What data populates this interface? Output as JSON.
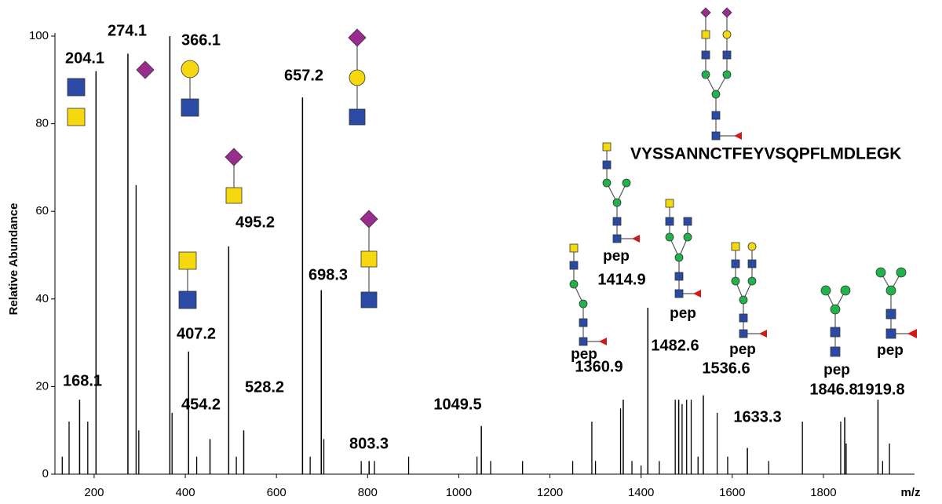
{
  "chart_data": {
    "type": "stem",
    "y_label": "Relative Abundance",
    "x_label": "m/z",
    "peptide": "VYSSANNCTFEYVSQPFLMDLEGK",
    "pep_labels": [
      "pep",
      "pep",
      "pep",
      "pep",
      "pep",
      "pep"
    ],
    "color": "#000000",
    "xlim": [
      114,
      2000
    ],
    "ylim": [
      0,
      100
    ],
    "xticks": [
      200,
      400,
      600,
      800,
      1000,
      1200,
      1400,
      1600,
      1800
    ],
    "yticks": [
      0,
      20,
      40,
      60,
      80,
      100
    ],
    "peaks": {
      "x": [
        168.1,
        204.1,
        274.1,
        366.1,
        407.2,
        454.2,
        495.2,
        528.2,
        657.2,
        698.3,
        803.3,
        1049.5,
        1360.9,
        1414.9,
        1482.6,
        1536.6,
        1633.3,
        1846.8,
        1919.8
      ],
      "values": [
        17,
        92,
        96,
        100,
        28,
        8,
        52,
        10,
        86,
        42,
        3,
        11,
        17,
        38,
        17,
        18,
        6,
        13,
        17
      ]
    },
    "minor_peaks": {
      "x": [
        130,
        145,
        186,
        292,
        298,
        371,
        425,
        512,
        674,
        704,
        786,
        815,
        890,
        1040,
        1070,
        1140,
        1250,
        1292,
        1300,
        1355,
        1380,
        1400,
        1440,
        1475,
        1490,
        1500,
        1510,
        1525,
        1567,
        1590,
        1680,
        1754,
        1838,
        1850,
        1930,
        1945
      ],
      "values": [
        4,
        12,
        12,
        66,
        10,
        14,
        4,
        4,
        4,
        8,
        3,
        3,
        4,
        4,
        3,
        3,
        3,
        12,
        3,
        15,
        3,
        2,
        3,
        17,
        16,
        17,
        17,
        4,
        14,
        4,
        3,
        12,
        12,
        7,
        3,
        7
      ]
    }
  }
}
